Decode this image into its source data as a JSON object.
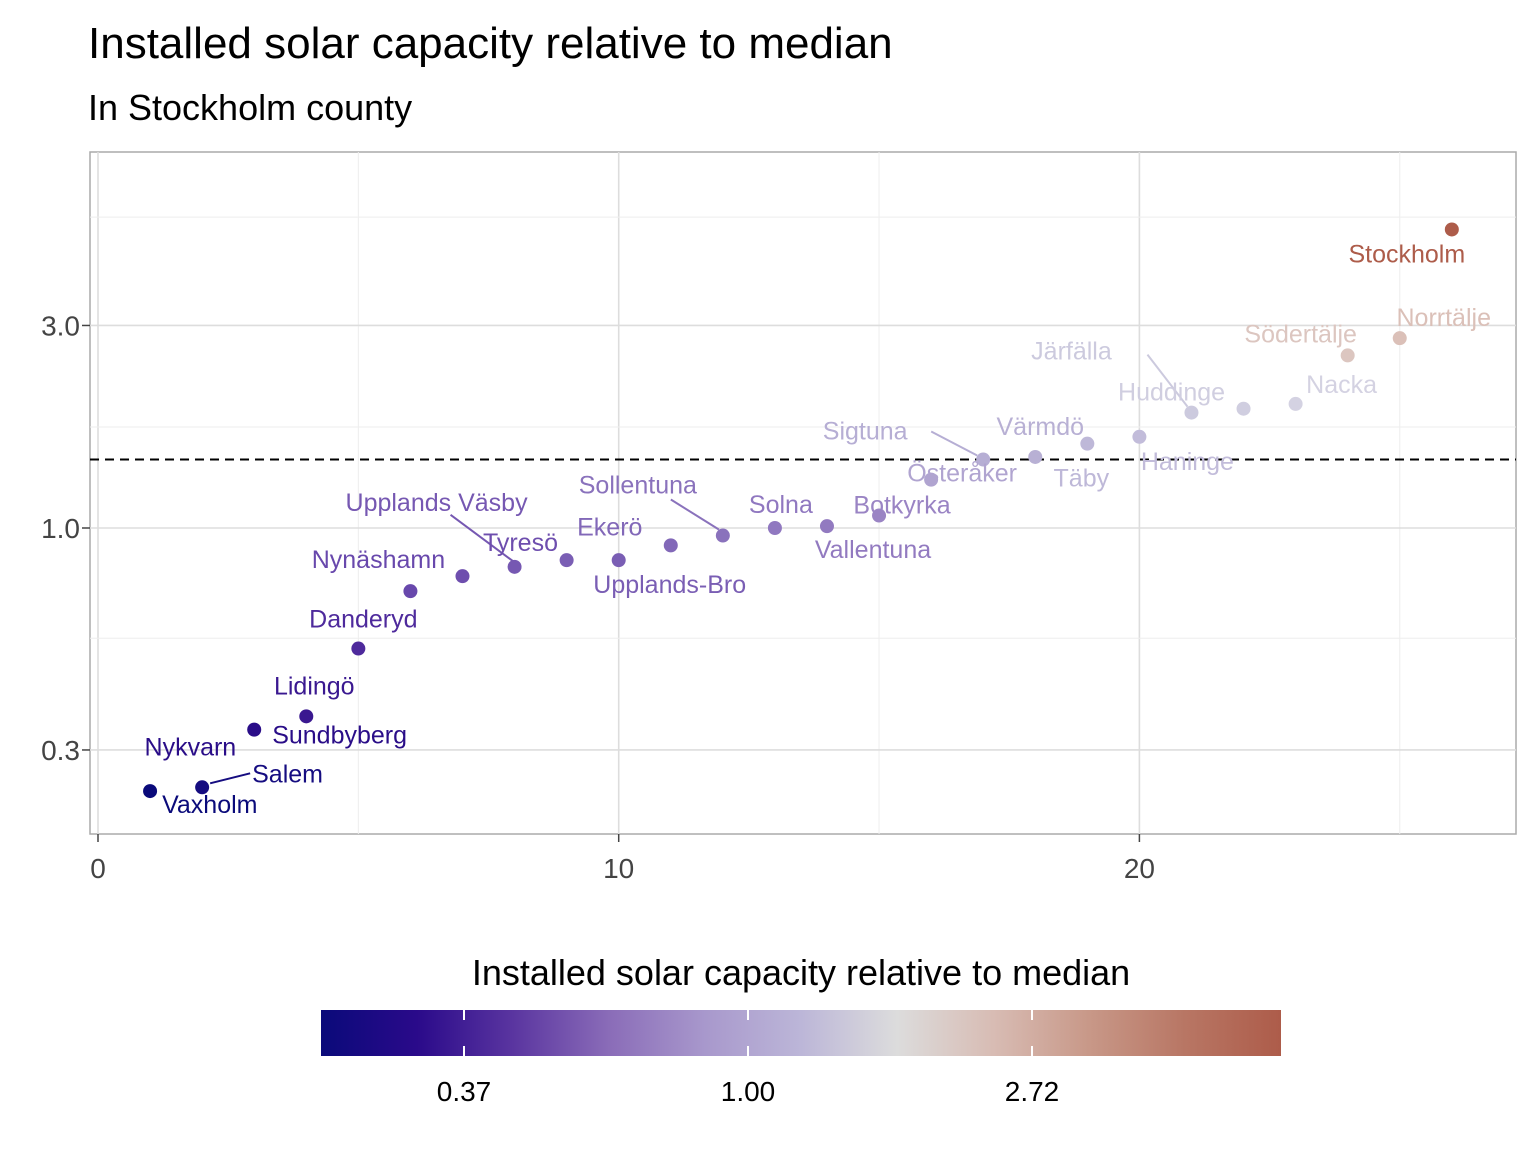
{
  "chart_data": {
    "type": "scatter",
    "title": "Installed solar capacity relative to median",
    "subtitle": "In Stockholm county",
    "xlabel": "",
    "ylabel": "",
    "x_ticks": [
      0,
      10,
      20
    ],
    "xlim": [
      -0.2,
      27.6
    ],
    "y_scale": "log",
    "y_ticks": [
      0.3,
      1.0,
      3.0
    ],
    "y_tick_labels": [
      "0.3",
      "1.0",
      "3.0"
    ],
    "ylim": [
      0.23,
      5.6
    ],
    "grid": true,
    "reference_line": {
      "y": 1.45,
      "style": "dashed"
    },
    "legend": {
      "title": "Installed solar capacity relative to median",
      "position": "bottom",
      "type": "colorbar",
      "ticks": [
        "0.37",
        "1.00",
        "2.72"
      ],
      "colors": [
        "#0a0a7a",
        "#2a0a8a",
        "#5a35a0",
        "#8a6cb8",
        "#a898cc",
        "#bcb6d8",
        "#dcdcdc",
        "#d8bcb4",
        "#c89888",
        "#b87664",
        "#ad5c4a"
      ]
    },
    "points": [
      {
        "x": 1,
        "y": 0.24,
        "label": "Vaxholm",
        "color": "#0a0a7a"
      },
      {
        "x": 2,
        "y": 0.245,
        "label": "Salem",
        "color": "#150c80"
      },
      {
        "x": 3,
        "y": 0.335,
        "label": "Nykvarn",
        "color": "#2a0d88"
      },
      {
        "x": 3,
        "y": 0.335,
        "label": "Sundbyberg",
        "color": "#2a0d88"
      },
      {
        "x": 4,
        "y": 0.36,
        "label": "Lidingö",
        "color": "#3a1890"
      },
      {
        "x": 5,
        "y": 0.52,
        "label": "Danderyd",
        "color": "#4e2a9c"
      },
      {
        "x": 6,
        "y": 0.71,
        "label": "Nynäshamn",
        "color": "#6848ac"
      },
      {
        "x": 7,
        "y": 0.77,
        "label": "Tyresö",
        "color": "#6e4eae"
      },
      {
        "x": 8,
        "y": 0.81,
        "label": "Upplands Väsby",
        "color": "#7658b2"
      },
      {
        "x": 9,
        "y": 0.84,
        "label": "Ekerö",
        "color": "#7a5eb4"
      },
      {
        "x": 10,
        "y": 0.84,
        "label": "Upplands-Bro",
        "color": "#7a5eb4"
      },
      {
        "x": 11,
        "y": 0.91,
        "label": "Ekerö",
        "color": "#8268b8"
      },
      {
        "x": 12,
        "y": 0.96,
        "label": "Sollentuna",
        "color": "#8a72bc"
      },
      {
        "x": 13,
        "y": 1.0,
        "label": "Solna",
        "color": "#9078c0"
      },
      {
        "x": 14,
        "y": 1.01,
        "label": "Vallentuna",
        "color": "#927ac0"
      },
      {
        "x": 15,
        "y": 1.07,
        "label": "Botkyrka",
        "color": "#9a84c4"
      },
      {
        "x": 16,
        "y": 1.3,
        "label": "Österåker",
        "color": "#b0a4d0"
      },
      {
        "x": 17,
        "y": 1.45,
        "label": "Sigtuna",
        "color": "#b6aed4"
      },
      {
        "x": 18,
        "y": 1.47,
        "label": "Värmdö",
        "color": "#b8b0d4"
      },
      {
        "x": 19,
        "y": 1.58,
        "label": "Täby",
        "color": "#beb8d8"
      },
      {
        "x": 20,
        "y": 1.64,
        "label": "Haninge",
        "color": "#c2bcda"
      },
      {
        "x": 21,
        "y": 1.87,
        "label": "Järfälla",
        "color": "#cccade"
      },
      {
        "x": 22,
        "y": 1.91,
        "label": "Huddinge",
        "color": "#d0cee0"
      },
      {
        "x": 23,
        "y": 1.96,
        "label": "Nacka",
        "color": "#d4d2e2"
      },
      {
        "x": 24,
        "y": 2.55,
        "label": "Södertälje",
        "color": "#dcc6c0"
      },
      {
        "x": 25,
        "y": 2.8,
        "label": "Norrtälje",
        "color": "#dbc0b8"
      },
      {
        "x": 26,
        "y": 5.05,
        "label": "Stockholm",
        "color": "#ad5c4a"
      }
    ]
  }
}
